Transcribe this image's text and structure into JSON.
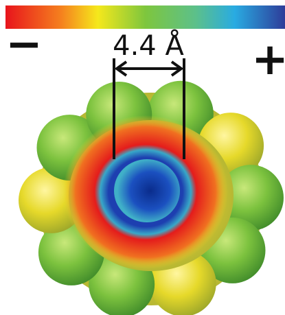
{
  "colorbar": {
    "minus_label": "−",
    "plus_label": "+"
  },
  "measurement": {
    "label": "4.4 Å"
  }
}
